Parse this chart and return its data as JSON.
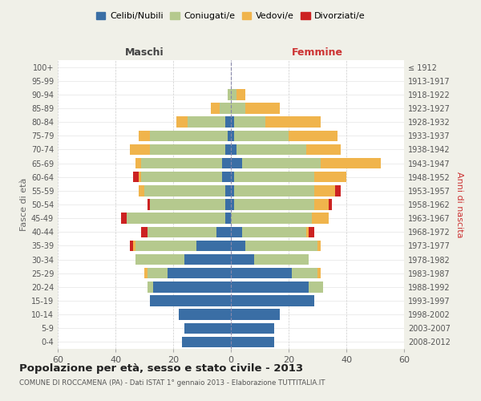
{
  "age_groups": [
    "0-4",
    "5-9",
    "10-14",
    "15-19",
    "20-24",
    "25-29",
    "30-34",
    "35-39",
    "40-44",
    "45-49",
    "50-54",
    "55-59",
    "60-64",
    "65-69",
    "70-74",
    "75-79",
    "80-84",
    "85-89",
    "90-94",
    "95-99",
    "100+"
  ],
  "birth_years": [
    "2008-2012",
    "2003-2007",
    "1998-2002",
    "1993-1997",
    "1988-1992",
    "1983-1987",
    "1978-1982",
    "1973-1977",
    "1968-1972",
    "1963-1967",
    "1958-1962",
    "1953-1957",
    "1948-1952",
    "1943-1947",
    "1938-1942",
    "1933-1937",
    "1928-1932",
    "1923-1927",
    "1918-1922",
    "1913-1917",
    "≤ 1912"
  ],
  "male": {
    "celibi": [
      17,
      16,
      18,
      28,
      27,
      22,
      16,
      12,
      5,
      2,
      2,
      2,
      3,
      3,
      2,
      1,
      2,
      0,
      0,
      0,
      0
    ],
    "coniugati": [
      0,
      0,
      0,
      0,
      2,
      7,
      17,
      21,
      24,
      34,
      26,
      28,
      28,
      28,
      26,
      27,
      13,
      4,
      1,
      0,
      0
    ],
    "vedovi": [
      0,
      0,
      0,
      0,
      0,
      1,
      0,
      1,
      0,
      0,
      0,
      2,
      1,
      2,
      7,
      4,
      4,
      3,
      0,
      0,
      0
    ],
    "divorziati": [
      0,
      0,
      0,
      0,
      0,
      0,
      0,
      1,
      2,
      2,
      1,
      0,
      2,
      0,
      0,
      0,
      0,
      0,
      0,
      0,
      0
    ]
  },
  "female": {
    "nubili": [
      15,
      15,
      17,
      29,
      27,
      21,
      8,
      5,
      4,
      0,
      1,
      1,
      1,
      4,
      2,
      1,
      1,
      0,
      0,
      0,
      0
    ],
    "coniugate": [
      0,
      0,
      0,
      0,
      5,
      9,
      19,
      25,
      22,
      28,
      28,
      28,
      28,
      27,
      24,
      19,
      11,
      5,
      2,
      0,
      0
    ],
    "vedove": [
      0,
      0,
      0,
      0,
      0,
      1,
      0,
      1,
      1,
      6,
      5,
      7,
      11,
      21,
      12,
      17,
      19,
      12,
      3,
      0,
      0
    ],
    "divorziate": [
      0,
      0,
      0,
      0,
      0,
      0,
      0,
      0,
      2,
      0,
      1,
      2,
      0,
      0,
      0,
      0,
      0,
      0,
      0,
      0,
      0
    ]
  },
  "colors": {
    "celibi": "#3a6ea5",
    "coniugati": "#b5c98e",
    "vedovi": "#f0b44c",
    "divorziati": "#cc2222"
  },
  "xlim": 60,
  "title": "Popolazione per età, sesso e stato civile - 2013",
  "subtitle": "COMUNE DI ROCCAMENA (PA) - Dati ISTAT 1° gennaio 2013 - Elaborazione TUTTITALIA.IT",
  "xlabel_left": "Maschi",
  "xlabel_right": "Femmine",
  "ylabel_left": "Fasce di età",
  "ylabel_right": "Anni di nascita",
  "legend_labels": [
    "Celibi/Nubili",
    "Coniugati/e",
    "Vedovi/e",
    "Divorziati/e"
  ],
  "bg_color": "#f0f0e8",
  "plot_bg_color": "#ffffff"
}
